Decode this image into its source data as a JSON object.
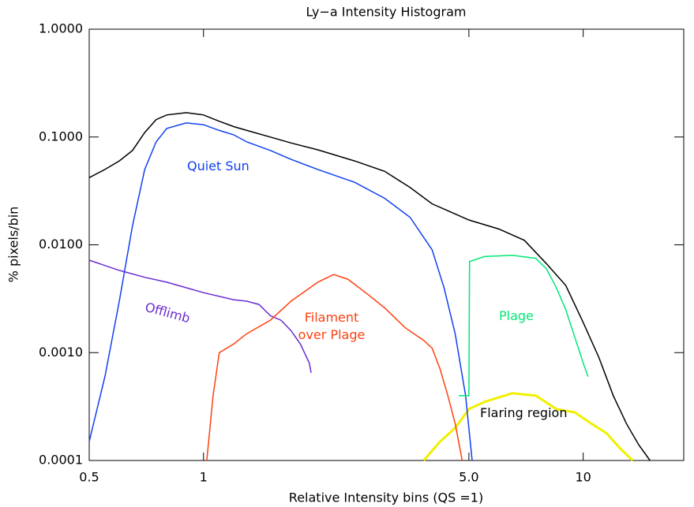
{
  "chart_data": {
    "type": "line",
    "title": "Ly−a Intensity Histogram",
    "x_label": "Relative Intensity bins (QS =1)",
    "y_label": "% pixels/bin",
    "xscale": "log",
    "yscale": "log",
    "xlim": [
      0.5,
      18.4
    ],
    "ylim": [
      0.0001,
      1
    ],
    "xticks": [
      0.5,
      1,
      {
        "value": 5,
        "label": "5.0"
      },
      10
    ],
    "yticks": [
      {
        "value": 1,
        "label": "1.0000"
      },
      {
        "value": 0.1,
        "label": "0.1000"
      },
      {
        "value": 0.01,
        "label": "0.0100"
      },
      {
        "value": 0.001,
        "label": "0.0010"
      },
      {
        "value": 0.0001,
        "label": "0.0001"
      }
    ],
    "series": [
      {
        "color": "#000000",
        "x": [
          0.5,
          0.55,
          0.6,
          0.65,
          0.7,
          0.75,
          0.8,
          0.9,
          1.0,
          1.1,
          1.2,
          1.3,
          1.5,
          1.7,
          2.0,
          2.5,
          3.0,
          3.5,
          4.0,
          4.5,
          5.0,
          6.0,
          7.0,
          8.0,
          9.0,
          10,
          11,
          12,
          13,
          14,
          15
        ],
        "values": [
          0.042,
          0.05,
          0.06,
          0.075,
          0.11,
          0.145,
          0.16,
          0.168,
          0.16,
          0.14,
          0.125,
          0.115,
          0.1,
          0.088,
          0.076,
          0.06,
          0.048,
          0.034,
          0.024,
          0.02,
          0.017,
          0.014,
          0.011,
          0.0067,
          0.0042,
          0.0019,
          0.0009,
          0.0004,
          0.00022,
          0.00014,
          0.0001
        ]
      },
      {
        "name": "Quiet Sun",
        "color": "#1040f0",
        "x": [
          0.5,
          0.55,
          0.6,
          0.65,
          0.7,
          0.75,
          0.8,
          0.9,
          1.0,
          1.1,
          1.2,
          1.3,
          1.5,
          1.7,
          2.0,
          2.5,
          3.0,
          3.5,
          4.0,
          4.3,
          4.6,
          4.9,
          5.1
        ],
        "values": [
          0.00015,
          0.0006,
          0.003,
          0.015,
          0.05,
          0.09,
          0.12,
          0.135,
          0.13,
          0.115,
          0.105,
          0.09,
          0.075,
          0.062,
          0.05,
          0.038,
          0.027,
          0.018,
          0.009,
          0.004,
          0.0015,
          0.0004,
          0.0001
        ]
      },
      {
        "name": "Offlimb",
        "color": "#6a2cd0",
        "x": [
          0.5,
          0.6,
          0.7,
          0.8,
          0.9,
          1.0,
          1.2,
          1.3,
          1.4,
          1.5,
          1.6,
          1.7,
          1.8,
          1.9,
          1.92
        ],
        "values": [
          0.0072,
          0.0058,
          0.005,
          0.0045,
          0.004,
          0.0036,
          0.0031,
          0.003,
          0.0028,
          0.0022,
          0.002,
          0.0016,
          0.0012,
          0.0008,
          0.00065
        ]
      },
      {
        "name": "Filament over Plage",
        "color": "#ff4010",
        "x": [
          1.02,
          1.06,
          1.1,
          1.2,
          1.3,
          1.5,
          1.7,
          2.0,
          2.2,
          2.4,
          2.7,
          3.0,
          3.4,
          3.8,
          4.0,
          4.2,
          4.4,
          4.6,
          4.8
        ],
        "values": [
          0.0001,
          0.0004,
          0.001,
          0.0012,
          0.0015,
          0.002,
          0.003,
          0.0045,
          0.0053,
          0.0048,
          0.0035,
          0.0026,
          0.0017,
          0.0013,
          0.0011,
          0.0007,
          0.0004,
          0.00022,
          0.0001
        ]
      },
      {
        "name": "Plage",
        "color": "#00e676",
        "x": [
          4.7,
          5.0,
          5.02,
          5.5,
          6.5,
          7.5,
          8.0,
          8.5,
          9.0,
          9.5,
          10,
          10.3
        ],
        "values": [
          0.0004,
          0.0004,
          0.007,
          0.0078,
          0.008,
          0.0075,
          0.006,
          0.004,
          0.0025,
          0.0014,
          0.0008,
          0.0006
        ]
      },
      {
        "name": "Flaring region",
        "color": "#f0f000",
        "x": [
          3.8,
          4.2,
          4.6,
          5.0,
          5.5,
          6.5,
          7.5,
          8.5,
          9.5,
          10.5,
          11.5,
          12.5,
          13.5
        ],
        "values": [
          0.0001,
          0.00015,
          0.0002,
          0.0003,
          0.00035,
          0.00042,
          0.0004,
          0.0003,
          0.00028,
          0.00022,
          0.00018,
          0.00013,
          0.0001
        ]
      }
    ]
  }
}
